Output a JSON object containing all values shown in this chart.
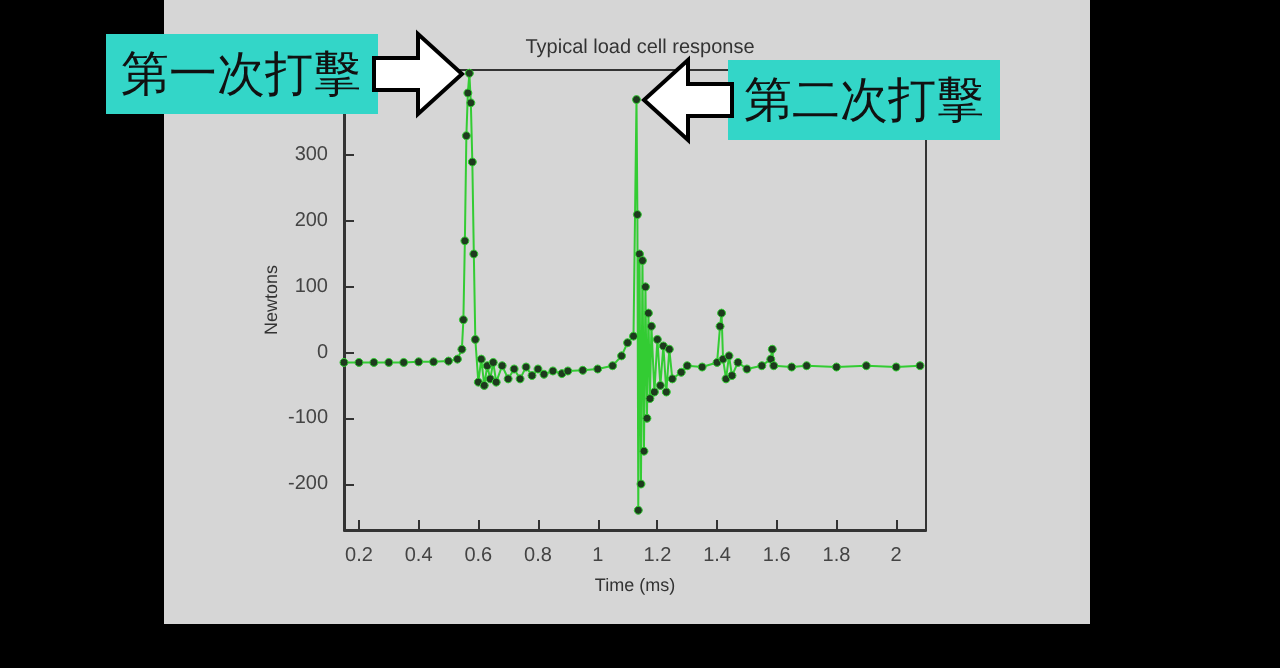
{
  "chart_data": {
    "type": "line",
    "title": "Typical load cell response",
    "xlabel": "Time (ms)",
    "ylabel": "Newtons",
    "x": [
      0.15,
      0.2,
      0.25,
      0.3,
      0.35,
      0.4,
      0.45,
      0.5,
      0.53,
      0.545,
      0.55,
      0.555,
      0.56,
      0.565,
      0.57,
      0.575,
      0.58,
      0.585,
      0.59,
      0.6,
      0.61,
      0.62,
      0.63,
      0.64,
      0.65,
      0.66,
      0.68,
      0.7,
      0.72,
      0.74,
      0.76,
      0.78,
      0.8,
      0.82,
      0.85,
      0.88,
      0.9,
      0.95,
      1.0,
      1.05,
      1.08,
      1.1,
      1.12,
      1.13,
      1.133,
      1.136,
      1.14,
      1.145,
      1.15,
      1.155,
      1.16,
      1.165,
      1.17,
      1.175,
      1.18,
      1.19,
      1.2,
      1.21,
      1.22,
      1.23,
      1.24,
      1.25,
      1.28,
      1.3,
      1.35,
      1.4,
      1.41,
      1.415,
      1.42,
      1.43,
      1.44,
      1.45,
      1.47,
      1.5,
      1.55,
      1.58,
      1.585,
      1.59,
      1.65,
      1.7,
      1.8,
      1.9,
      2.0,
      2.08
    ],
    "series": [
      {
        "color": "#33cc33",
        "values": [
          -15,
          -15,
          -15,
          -15,
          -15,
          -14,
          -14,
          -13,
          -10,
          5,
          50,
          170,
          330,
          395,
          425,
          380,
          290,
          150,
          20,
          -45,
          -10,
          -50,
          -20,
          -40,
          -15,
          -45,
          -20,
          -40,
          -25,
          -40,
          -22,
          -35,
          -25,
          -33,
          -28,
          -32,
          -28,
          -27,
          -25,
          -20,
          -5,
          15,
          25,
          385,
          210,
          -240,
          150,
          -200,
          140,
          -150,
          100,
          -100,
          60,
          -70,
          40,
          -60,
          20,
          -50,
          10,
          -60,
          5,
          -40,
          -30,
          -20,
          -22,
          -15,
          40,
          60,
          -10,
          -40,
          -5,
          -35,
          -15,
          -25,
          -20,
          -10,
          5,
          -20,
          -22,
          -20,
          -22,
          -20,
          -22,
          -20
        ]
      }
    ],
    "xlim": [
      0.15,
      2.1
    ],
    "xticks": [
      0.2,
      0.4,
      0.6,
      0.8,
      1,
      1.2,
      1.4,
      1.6,
      1.8,
      2
    ],
    "ylim": [
      -270,
      430
    ],
    "yticks": [
      -200,
      -100,
      0,
      100,
      300,
      200
    ],
    "marker": "circle",
    "grid": false,
    "annotations": [
      {
        "text": "第一次打擊",
        "x": 0.57,
        "y": 425
      },
      {
        "text": "第二次打擊",
        "x": 1.13,
        "y": 385
      }
    ]
  }
}
